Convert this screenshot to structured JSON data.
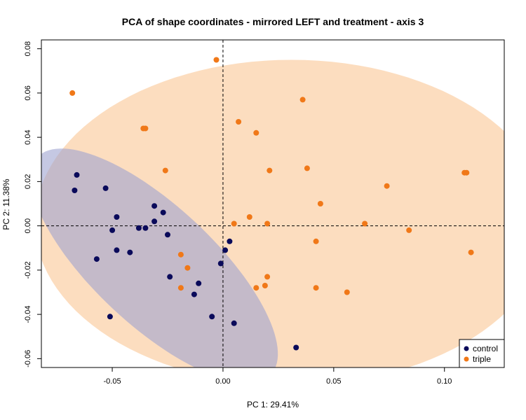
{
  "chart_data": {
    "type": "scatter",
    "title": "PCA of shape coordinates - mirrored LEFT and treatment - axis 3",
    "xlabel": "PC 1: 29.41%",
    "ylabel": "PC 2: 11.38%",
    "xlim": [
      -0.082,
      0.127
    ],
    "ylim": [
      -0.064,
      0.084
    ],
    "xticks": [
      -0.05,
      0.0,
      0.05,
      0.1
    ],
    "xtick_labels": [
      "-0.05",
      "0.00",
      "0.05",
      "0.10"
    ],
    "yticks": [
      -0.06,
      -0.04,
      -0.02,
      0.0,
      0.02,
      0.04,
      0.06,
      0.08
    ],
    "ytick_labels": [
      "-0.06",
      "-0.04",
      "-0.02",
      "0.00",
      "0.02",
      "0.04",
      "0.06",
      "0.08"
    ],
    "grid": false,
    "reference_lines": {
      "x": 0,
      "y": 0,
      "style": "dashed"
    },
    "legend_position": "bottom-right",
    "series": [
      {
        "name": "control",
        "color": "#0a0a5a",
        "ellipse_color": "#9fa3d1",
        "ellipse": {
          "center": [
            -0.031,
            -0.018
          ],
          "semi_major": 0.072,
          "semi_minor": 0.027,
          "angle_deg": -43
        },
        "points": [
          [
            -0.066,
            0.023
          ],
          [
            -0.067,
            0.016
          ],
          [
            -0.053,
            0.017
          ],
          [
            -0.048,
            0.004
          ],
          [
            -0.05,
            -0.002
          ],
          [
            -0.038,
            -0.001
          ],
          [
            -0.035,
            -0.001
          ],
          [
            -0.031,
            0.009
          ],
          [
            -0.027,
            0.006
          ],
          [
            -0.031,
            0.002
          ],
          [
            -0.048,
            -0.011
          ],
          [
            -0.042,
            -0.012
          ],
          [
            -0.025,
            -0.004
          ],
          [
            -0.057,
            -0.015
          ],
          [
            -0.051,
            -0.041
          ],
          [
            -0.024,
            -0.023
          ],
          [
            -0.011,
            -0.026
          ],
          [
            -0.013,
            -0.031
          ],
          [
            0.003,
            -0.007
          ],
          [
            0.001,
            -0.011
          ],
          [
            -0.001,
            -0.017
          ],
          [
            -0.005,
            -0.041
          ],
          [
            0.005,
            -0.044
          ],
          [
            0.033,
            -0.055
          ]
        ]
      },
      {
        "name": "triple",
        "color": "#f07818",
        "ellipse_color": "#fcd9b8",
        "ellipse": {
          "center": [
            0.031,
            0.0015
          ],
          "semi_major": 0.116,
          "semi_minor": 0.0735,
          "angle_deg": 0
        },
        "points": [
          [
            -0.068,
            0.06
          ],
          [
            -0.003,
            0.075
          ],
          [
            -0.036,
            0.044
          ],
          [
            -0.035,
            0.044
          ],
          [
            -0.026,
            0.025
          ],
          [
            0.007,
            0.047
          ],
          [
            0.015,
            0.042
          ],
          [
            0.036,
            0.057
          ],
          [
            0.021,
            0.025
          ],
          [
            0.038,
            0.026
          ],
          [
            0.074,
            0.018
          ],
          [
            0.11,
            0.024
          ],
          [
            0.109,
            0.024
          ],
          [
            0.044,
            0.01
          ],
          [
            0.005,
            0.001
          ],
          [
            0.012,
            0.004
          ],
          [
            0.02,
            0.001
          ],
          [
            0.064,
            0.001
          ],
          [
            0.084,
            -0.002
          ],
          [
            0.042,
            -0.007
          ],
          [
            0.112,
            -0.012
          ],
          [
            -0.019,
            -0.013
          ],
          [
            -0.016,
            -0.019
          ],
          [
            -0.019,
            -0.028
          ],
          [
            0.02,
            -0.023
          ],
          [
            0.015,
            -0.028
          ],
          [
            0.019,
            -0.027
          ],
          [
            0.042,
            -0.028
          ],
          [
            0.056,
            -0.03
          ]
        ]
      }
    ]
  }
}
